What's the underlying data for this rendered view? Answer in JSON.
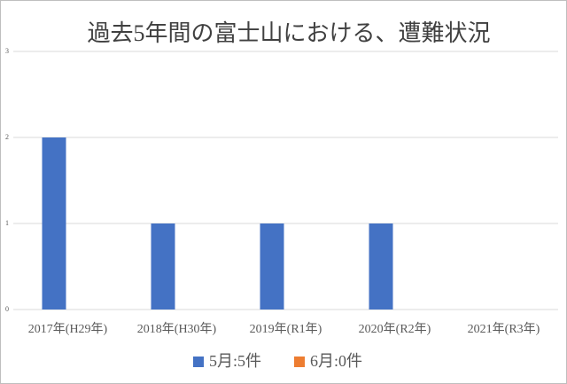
{
  "chart_data": {
    "type": "bar",
    "title": "過去5年間の富士山における、遭難状況",
    "categories": [
      "2017年(H29年)",
      "2018年(H30年)",
      "2019年(R1年)",
      "2020年(R2年)",
      "2021年(R3年)"
    ],
    "series": [
      {
        "name": "5月:5件",
        "color": "#4472c4",
        "values": [
          2,
          1,
          1,
          1,
          0
        ]
      },
      {
        "name": "6月:0件",
        "color": "#ed7d31",
        "values": [
          0,
          0,
          0,
          0,
          0
        ]
      }
    ],
    "ylim": [
      0,
      3
    ],
    "yticks": [
      0,
      1,
      2,
      3
    ],
    "grid": true
  }
}
